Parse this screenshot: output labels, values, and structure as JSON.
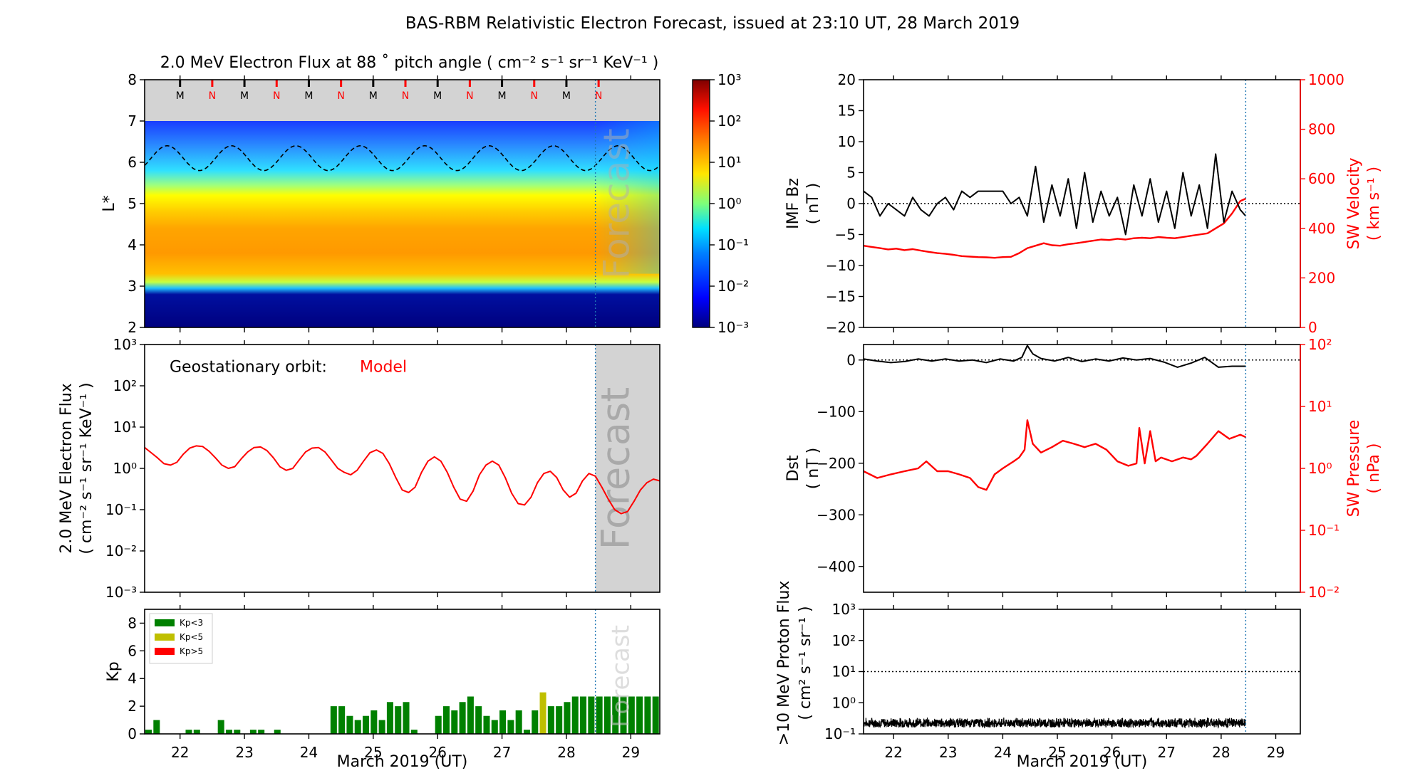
{
  "title": "BAS-RBM Relativistic Electron Forecast, issued at 23:10 UT, 28 March 2019",
  "forecast_label": "Forecast",
  "x_axis": {
    "label": "March 2019 (UT)",
    "ticks": [
      "22",
      "23",
      "24",
      "25",
      "26",
      "27",
      "28",
      "29"
    ],
    "range_days": [
      21.45,
      29.45
    ],
    "forecast_start_day": 28.45
  },
  "chart_data": [
    {
      "id": "flux-map",
      "type": "heatmap",
      "title": "2.0 MeV Electron Flux at 88 ˚ pitch angle ( cm⁻² s⁻¹ sr⁻¹ KeV⁻¹ )",
      "ylabel": "L*",
      "ylim": [
        2,
        8
      ],
      "yticks": [
        "2",
        "3",
        "4",
        "5",
        "6",
        "7",
        "8"
      ],
      "colorbar": {
        "scale": "log",
        "range": [
          0.001,
          1000
        ],
        "ticks": [
          "10⁻³",
          "10⁻²",
          "10⁻¹",
          "10⁰",
          "10¹",
          "10²",
          "10³"
        ]
      },
      "orbit_markers": [
        "M",
        "N",
        "M",
        "N",
        "M",
        "N",
        "M",
        "N",
        "M",
        "N",
        "M",
        "N",
        "M",
        "N"
      ],
      "orbit_colors": {
        "M": "#000000",
        "N": "#ff0000"
      },
      "magnetopause_dashed": {
        "mean_L": 6.1,
        "amplitude": 0.3,
        "period_days": 1.0
      }
    },
    {
      "id": "geo-flux",
      "type": "line",
      "annotation": "Geostationary orbit:",
      "annotation_value": "Model",
      "ylabel_line1": "2.0 MeV Electron Flux",
      "ylabel_line2": "( cm⁻² s⁻¹ sr⁻¹ KeV⁻¹ )",
      "yscale": "log",
      "ylim": [
        0.001,
        1000
      ],
      "yticks": [
        "10⁻³",
        "10⁻²",
        "10⁻¹",
        "10⁰",
        "10¹",
        "10²",
        "10³"
      ],
      "series": [
        {
          "color": "#ff0000",
          "x": [
            21.45,
            21.55,
            21.65,
            21.75,
            21.85,
            21.95,
            22.05,
            22.15,
            22.25,
            22.35,
            22.45,
            22.55,
            22.65,
            22.75,
            22.85,
            22.95,
            23.05,
            23.15,
            23.25,
            23.35,
            23.45,
            23.55,
            23.65,
            23.75,
            23.85,
            23.95,
            24.05,
            24.15,
            24.25,
            24.35,
            24.45,
            24.55,
            24.65,
            24.75,
            24.85,
            24.95,
            25.05,
            25.15,
            25.25,
            25.35,
            25.45,
            25.55,
            25.65,
            25.75,
            25.85,
            25.95,
            26.05,
            26.15,
            26.25,
            26.35,
            26.45,
            26.55,
            26.65,
            26.75,
            26.85,
            26.95,
            27.05,
            27.15,
            27.25,
            27.35,
            27.45,
            27.55,
            27.65,
            27.75,
            27.85,
            27.95,
            28.05,
            28.15,
            28.25,
            28.35,
            28.45,
            28.55,
            28.65,
            28.75,
            28.85,
            28.95,
            29.05,
            29.15,
            29.25,
            29.35,
            29.45
          ],
          "values": [
            3.2,
            2.4,
            1.8,
            1.3,
            1.2,
            1.4,
            2.2,
            3.1,
            3.5,
            3.4,
            2.6,
            1.8,
            1.2,
            1.0,
            1.1,
            1.7,
            2.5,
            3.2,
            3.3,
            2.7,
            1.8,
            1.1,
            0.9,
            1.0,
            1.6,
            2.5,
            3.1,
            3.2,
            2.5,
            1.6,
            1.0,
            0.8,
            0.7,
            0.9,
            1.5,
            2.4,
            2.8,
            2.3,
            1.3,
            0.6,
            0.3,
            0.26,
            0.35,
            0.8,
            1.5,
            1.9,
            1.5,
            0.8,
            0.35,
            0.18,
            0.16,
            0.28,
            0.7,
            1.2,
            1.5,
            1.2,
            0.6,
            0.25,
            0.14,
            0.13,
            0.2,
            0.45,
            0.75,
            0.85,
            0.6,
            0.3,
            0.2,
            0.25,
            0.5,
            0.75,
            0.65,
            0.35,
            0.18,
            0.1,
            0.08,
            0.09,
            0.16,
            0.3,
            0.45,
            0.55,
            0.5
          ]
        }
      ]
    },
    {
      "id": "kp-index",
      "type": "bar",
      "ylabel": "Kp",
      "ylim": [
        0,
        9
      ],
      "yticks": [
        "0",
        "2",
        "4",
        "6",
        "8"
      ],
      "legend": [
        {
          "label": "Kp<3",
          "color": "#008000"
        },
        {
          "label": "Kp<5",
          "color": "#bfbf00"
        },
        {
          "label": "Kp>5",
          "color": "#ff0000"
        }
      ],
      "legend_position": "top-left",
      "bar_width_days": 0.1,
      "values": [
        0.3,
        1.0,
        0.0,
        0.0,
        0.0,
        0.3,
        0.3,
        0.0,
        0.0,
        1.0,
        0.3,
        0.3,
        0.0,
        0.3,
        0.3,
        0.0,
        0.3,
        0.0,
        0.0,
        0.0,
        0.0,
        0.0,
        0.0,
        2.0,
        2.0,
        1.3,
        1.0,
        1.3,
        1.7,
        1.0,
        2.3,
        2.0,
        2.3,
        0.3,
        0.0,
        0.0,
        1.3,
        2.0,
        1.7,
        2.3,
        2.7,
        2.0,
        1.3,
        1.0,
        1.7,
        1.0,
        1.7,
        0.3,
        1.7,
        3.0,
        2.0,
        2.0,
        2.3,
        2.7,
        2.7,
        2.7,
        2.7,
        2.7,
        2.7,
        2.7,
        2.7,
        2.7,
        2.7,
        2.7
      ]
    },
    {
      "id": "imf-sw",
      "type": "line",
      "ylabel_left_line1": "IMF Bz",
      "ylabel_left_line2": "( nT )",
      "ylim_left": [
        -20,
        20
      ],
      "yticks_left": [
        "−20",
        "−15",
        "−10",
        "−5",
        "0",
        "5",
        "10",
        "15",
        "20"
      ],
      "ylabel_right_line1": "SW Velocity",
      "ylabel_right_line2": "( km s⁻¹ )",
      "ylim_right": [
        0,
        1000
      ],
      "yticks_right": [
        "0",
        "200",
        "400",
        "600",
        "800",
        "1000"
      ],
      "series": [
        {
          "color": "#000000",
          "axis": "left",
          "x": [
            21.45,
            21.6,
            21.75,
            21.9,
            22.05,
            22.2,
            22.35,
            22.5,
            22.65,
            22.8,
            22.95,
            23.1,
            23.25,
            23.4,
            23.55,
            23.7,
            23.85,
            24.0,
            24.15,
            24.3,
            24.45,
            24.6,
            24.75,
            24.9,
            25.05,
            25.2,
            25.35,
            25.5,
            25.65,
            25.8,
            25.95,
            26.1,
            26.25,
            26.4,
            26.55,
            26.7,
            26.85,
            27.0,
            27.15,
            27.3,
            27.45,
            27.6,
            27.75,
            27.9,
            28.05,
            28.2,
            28.35,
            28.45
          ],
          "values": [
            2,
            1,
            -2,
            0,
            -1,
            -2,
            1,
            -1,
            -2,
            0,
            1,
            -1,
            2,
            1,
            2,
            2,
            2,
            2,
            0,
            1,
            -2,
            6,
            -3,
            3,
            -2,
            4,
            -4,
            5,
            -3,
            2,
            -2,
            1,
            -5,
            3,
            -2,
            4,
            -3,
            2,
            -4,
            5,
            -2,
            3,
            -4,
            8,
            -3,
            2,
            -1,
            -2
          ]
        },
        {
          "color": "#ff0000",
          "axis": "right",
          "x": [
            21.45,
            21.6,
            21.75,
            21.9,
            22.05,
            22.2,
            22.35,
            22.5,
            22.65,
            22.8,
            22.95,
            23.1,
            23.25,
            23.4,
            23.55,
            23.7,
            23.85,
            24.0,
            24.15,
            24.3,
            24.45,
            24.6,
            24.75,
            24.9,
            25.05,
            25.2,
            25.35,
            25.5,
            25.65,
            25.8,
            25.95,
            26.1,
            26.25,
            26.4,
            26.55,
            26.7,
            26.85,
            27.0,
            27.15,
            27.3,
            27.45,
            27.6,
            27.75,
            27.9,
            28.05,
            28.2,
            28.35,
            28.45
          ],
          "values": [
            330,
            325,
            320,
            315,
            318,
            312,
            316,
            310,
            305,
            300,
            297,
            293,
            288,
            286,
            284,
            283,
            281,
            284,
            285,
            300,
            320,
            330,
            340,
            332,
            330,
            336,
            340,
            345,
            350,
            355,
            353,
            358,
            355,
            360,
            362,
            360,
            365,
            362,
            360,
            365,
            370,
            375,
            380,
            400,
            420,
            460,
            510,
            520
          ]
        }
      ]
    },
    {
      "id": "dst-pressure",
      "type": "line",
      "ylabel_left_line1": "Dst",
      "ylabel_left_line2": "( nT )",
      "ylim_left": [
        -450,
        30
      ],
      "yticks_left": [
        "−400",
        "−300",
        "−200",
        "−100",
        "0"
      ],
      "ylabel_right_line1": "SW Pressure",
      "ylabel_right_line2": "( nPa )",
      "yscale_right": "log",
      "ylim_right": [
        0.01,
        100
      ],
      "yticks_right": [
        "10⁻²",
        "10⁻¹",
        "10⁰",
        "10¹",
        "10²"
      ],
      "series": [
        {
          "color": "#000000",
          "axis": "left",
          "x": [
            21.45,
            21.7,
            21.95,
            22.2,
            22.45,
            22.7,
            22.95,
            23.2,
            23.45,
            23.7,
            23.95,
            24.2,
            24.35,
            24.45,
            24.55,
            24.7,
            24.95,
            25.2,
            25.45,
            25.7,
            25.95,
            26.2,
            26.45,
            26.7,
            26.95,
            27.2,
            27.45,
            27.7,
            27.95,
            28.2,
            28.45
          ],
          "values": [
            2,
            -2,
            -5,
            -3,
            2,
            -2,
            2,
            -2,
            0,
            -5,
            2,
            -2,
            5,
            28,
            12,
            3,
            -2,
            5,
            -3,
            2,
            -2,
            4,
            0,
            3,
            -4,
            -14,
            -6,
            5,
            -14,
            -12,
            -12
          ]
        },
        {
          "color": "#ff0000",
          "axis": "right",
          "x": [
            21.45,
            21.7,
            21.95,
            22.2,
            22.45,
            22.6,
            22.8,
            23.0,
            23.2,
            23.4,
            23.55,
            23.7,
            23.85,
            24.0,
            24.2,
            24.3,
            24.4,
            24.45,
            24.55,
            24.7,
            24.9,
            25.1,
            25.3,
            25.5,
            25.7,
            25.9,
            26.1,
            26.3,
            26.45,
            26.5,
            26.6,
            26.7,
            26.8,
            26.9,
            27.1,
            27.3,
            27.45,
            27.55,
            27.75,
            27.95,
            28.15,
            28.35,
            28.45
          ],
          "values": [
            0.9,
            0.7,
            0.8,
            0.9,
            1.0,
            1.3,
            0.9,
            0.9,
            0.8,
            0.7,
            0.5,
            0.45,
            0.8,
            1.0,
            1.3,
            1.5,
            2.0,
            6.0,
            2.5,
            1.8,
            2.2,
            2.8,
            2.5,
            2.2,
            2.5,
            2.0,
            1.3,
            1.1,
            1.2,
            4.5,
            1.2,
            4.0,
            1.3,
            1.5,
            1.3,
            1.5,
            1.4,
            1.6,
            2.5,
            4.0,
            3.0,
            3.5,
            3.2
          ]
        }
      ]
    },
    {
      "id": "proton-flux",
      "type": "line",
      "ylabel_line1": ">10 MeV Proton Flux",
      "ylabel_line2": "( cm² s⁻¹ sr⁻¹ )",
      "yscale": "log",
      "ylim": [
        0.1,
        1000
      ],
      "yticks": [
        "10⁻¹",
        "10⁰",
        "10¹",
        "10²",
        "10³"
      ],
      "threshold": 10,
      "series": [
        {
          "color": "#000000",
          "level_mean": 0.22,
          "level_spread": [
            0.16,
            0.34
          ]
        }
      ]
    }
  ]
}
